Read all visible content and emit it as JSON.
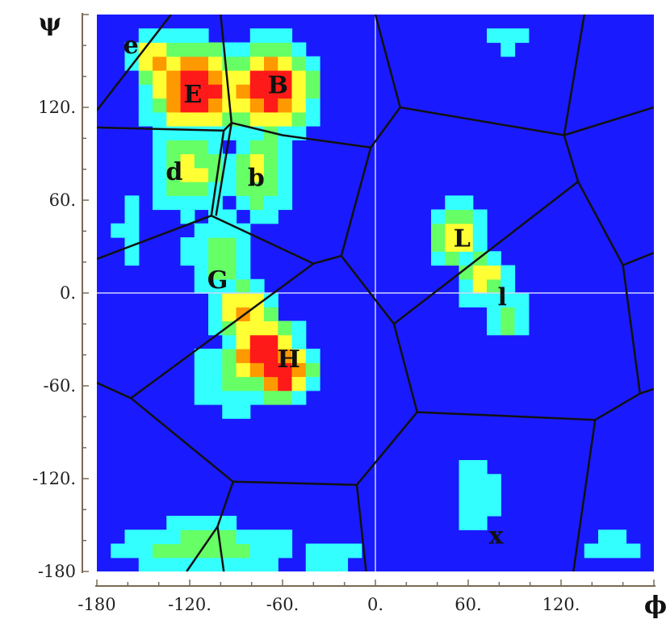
{
  "chart_data": {
    "type": "heatmap",
    "xlabel": "ϕ",
    "ylabel": "ψ",
    "xlim": [
      -180,
      180
    ],
    "ylim": [
      -180,
      180
    ],
    "x_ticks": [
      -180,
      -120,
      -60,
      0,
      60,
      120
    ],
    "x_tick_labels": [
      "-180",
      "-120.",
      "-60.",
      "0.",
      "60.",
      "120."
    ],
    "y_ticks": [
      -180,
      -120,
      -60,
      0,
      60,
      120
    ],
    "y_tick_labels": [
      "-180",
      "-120.",
      "-60.",
      "0.",
      "60.",
      "120."
    ],
    "background_color": "#1a1aff",
    "colorscale": [
      "#1a1aff",
      "#33ffff",
      "#66ff66",
      "#ffff33",
      "#ff9900",
      "#ff1a1a"
    ],
    "density_peaks": [
      {
        "phi": -116,
        "psi": 132,
        "sx": 22,
        "sy": 20,
        "level": 1.0
      },
      {
        "phi": -68,
        "psi": 132,
        "sx": 20,
        "sy": 20,
        "level": 1.0
      },
      {
        "phi": -140,
        "psi": 150,
        "sx": 12,
        "sy": 12,
        "level": 0.8
      },
      {
        "phi": -120,
        "psi": 80,
        "sx": 20,
        "sy": 22,
        "level": 0.55
      },
      {
        "phi": -75,
        "psi": 78,
        "sx": 16,
        "sy": 22,
        "level": 0.55
      },
      {
        "phi": -100,
        "psi": 25,
        "sx": 18,
        "sy": 20,
        "level": 0.45
      },
      {
        "phi": -85,
        "psi": -12,
        "sx": 15,
        "sy": 14,
        "level": 0.75
      },
      {
        "phi": -72,
        "psi": -38,
        "sx": 16,
        "sy": 15,
        "level": 1.0
      },
      {
        "phi": -60,
        "psi": -50,
        "sx": 14,
        "sy": 14,
        "level": 1.0
      },
      {
        "phi": -90,
        "psi": -55,
        "sx": 25,
        "sy": 20,
        "level": 0.4
      },
      {
        "phi": 52,
        "psi": 38,
        "sx": 12,
        "sy": 16,
        "level": 0.65
      },
      {
        "phi": 70,
        "psi": 10,
        "sx": 12,
        "sy": 14,
        "level": 0.6
      },
      {
        "phi": 85,
        "psi": -15,
        "sx": 12,
        "sy": 12,
        "level": 0.45
      },
      {
        "phi": 65,
        "psi": -130,
        "sx": 12,
        "sy": 25,
        "level": 0.35
      },
      {
        "phi": -110,
        "psi": -165,
        "sx": 45,
        "sy": 14,
        "level": 0.45
      },
      {
        "phi": -30,
        "psi": -170,
        "sx": 20,
        "sy": 10,
        "level": 0.3
      },
      {
        "phi": 150,
        "psi": -165,
        "sx": 20,
        "sy": 10,
        "level": 0.3
      },
      {
        "phi": 85,
        "psi": 165,
        "sx": 12,
        "sy": 10,
        "level": 0.3
      },
      {
        "phi": -160,
        "psi": 40,
        "sx": 10,
        "sy": 30,
        "level": 0.25
      }
    ],
    "partition_color": "#111111",
    "partition_lines": [
      [
        [
          -180,
          118
        ],
        [
          -132,
          180
        ]
      ],
      [
        [
          -180,
          107
        ],
        [
          -98,
          105
        ]
      ],
      [
        [
          -98,
          105
        ],
        [
          -93,
          110
        ]
      ],
      [
        [
          -93,
          110
        ],
        [
          -60,
          102
        ],
        [
          -3,
          94
        ]
      ],
      [
        [
          -93,
          110
        ],
        [
          -100,
          180
        ]
      ],
      [
        [
          -98,
          105
        ],
        [
          -106,
          50
        ]
      ],
      [
        [
          -93,
          110
        ],
        [
          -103,
          50
        ]
      ],
      [
        [
          -106,
          50
        ],
        [
          -180,
          22
        ]
      ],
      [
        [
          -106,
          50
        ],
        [
          -40,
          19
        ]
      ],
      [
        [
          -40,
          19
        ],
        [
          -22,
          24
        ]
      ],
      [
        [
          -22,
          24
        ],
        [
          -3,
          94
        ]
      ],
      [
        [
          -3,
          94
        ],
        [
          16,
          120
        ]
      ],
      [
        [
          16,
          120
        ],
        [
          0,
          180
        ]
      ],
      [
        [
          16,
          120
        ],
        [
          122,
          102
        ]
      ],
      [
        [
          122,
          102
        ],
        [
          135,
          180
        ]
      ],
      [
        [
          122,
          102
        ],
        [
          180,
          120
        ]
      ],
      [
        [
          122,
          102
        ],
        [
          131,
          72
        ]
      ],
      [
        [
          131,
          72
        ],
        [
          12,
          -20
        ]
      ],
      [
        [
          -22,
          24
        ],
        [
          12,
          -20
        ]
      ],
      [
        [
          131,
          72
        ],
        [
          160,
          18
        ]
      ],
      [
        [
          160,
          18
        ],
        [
          180,
          26
        ]
      ],
      [
        [
          160,
          18
        ],
        [
          171,
          -65
        ]
      ],
      [
        [
          12,
          -20
        ],
        [
          27,
          -77
        ]
      ],
      [
        [
          -40,
          19
        ],
        [
          -158,
          -68
        ]
      ],
      [
        [
          -158,
          -68
        ],
        [
          -180,
          -58
        ]
      ],
      [
        [
          -158,
          -68
        ],
        [
          -92,
          -122
        ]
      ],
      [
        [
          27,
          -77
        ],
        [
          142,
          -82
        ]
      ],
      [
        [
          142,
          -82
        ],
        [
          171,
          -65
        ]
      ],
      [
        [
          171,
          -65
        ],
        [
          180,
          -62
        ]
      ],
      [
        [
          27,
          -77
        ],
        [
          -12,
          -124
        ]
      ],
      [
        [
          -92,
          -122
        ],
        [
          -12,
          -124
        ]
      ],
      [
        [
          -92,
          -122
        ],
        [
          -102,
          -151
        ]
      ],
      [
        [
          -102,
          -151
        ],
        [
          -98,
          -180
        ]
      ],
      [
        [
          -102,
          -151
        ],
        [
          -122,
          -180
        ]
      ],
      [
        [
          -12,
          -124
        ],
        [
          -6,
          -180
        ]
      ],
      [
        [
          142,
          -82
        ],
        [
          128,
          -180
        ]
      ]
    ],
    "region_labels": [
      {
        "text": "e",
        "phi": -158,
        "psi": 160
      },
      {
        "text": "E",
        "phi": -118,
        "psi": 128
      },
      {
        "text": "B",
        "phi": -63,
        "psi": 134
      },
      {
        "text": "d",
        "phi": -130,
        "psi": 78
      },
      {
        "text": "b",
        "phi": -77,
        "psi": 74
      },
      {
        "text": "G",
        "phi": -102,
        "psi": 8
      },
      {
        "text": "H",
        "phi": -56,
        "psi": -43
      },
      {
        "text": "L",
        "phi": 56,
        "psi": 35
      },
      {
        "text": "l",
        "phi": 82,
        "psi": -3
      },
      {
        "text": "x",
        "phi": 78,
        "psi": -157
      }
    ]
  }
}
